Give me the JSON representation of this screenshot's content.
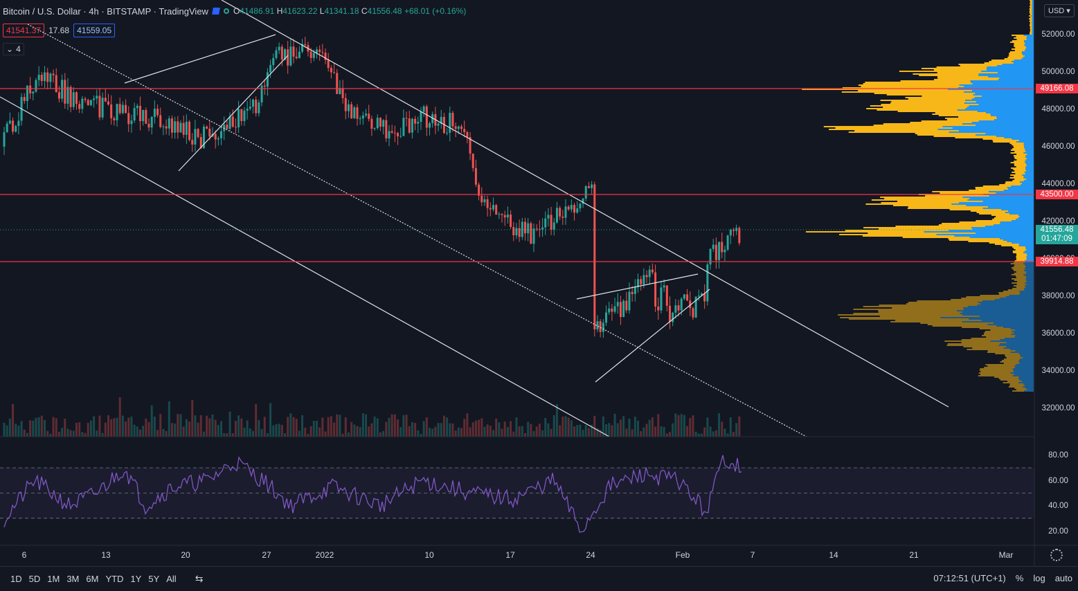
{
  "header": {
    "title": "Bitcoin / U.S. Dollar · 4h · BITSTAMP · TradingView",
    "ohlc": {
      "o_label": "O",
      "o": "41486.91",
      "h_label": "H",
      "h": "41623.22",
      "l_label": "L",
      "l": "41341.18",
      "c_label": "C",
      "c": "41556.48",
      "change": "+68.01 (+0.16%)"
    },
    "sell_price": "41541.37",
    "spread": "17.68",
    "buy_price": "41559.05",
    "indicator_count": "4",
    "currency": "USD"
  },
  "price_axis": [
    "52000.00",
    "50000.00",
    "48000.00",
    "46000.00",
    "44000.00",
    "42000.00",
    "40000.00",
    "38000.00",
    "36000.00",
    "34000.00",
    "32000.00"
  ],
  "rsi_axis": [
    "80.00",
    "60.00",
    "40.00",
    "20.00"
  ],
  "price_tags": {
    "level1": "49166.08",
    "level2": "43500.00",
    "level3": "39914.88",
    "current": "41556.48",
    "countdown": "01:47:09"
  },
  "time_axis": [
    "6",
    "13",
    "20",
    "27",
    "2022",
    "10",
    "17",
    "24",
    "Feb",
    "7",
    "14",
    "21",
    "Mar"
  ],
  "bottom_bar": {
    "ranges": [
      "1D",
      "5D",
      "1M",
      "3M",
      "6M",
      "YTD",
      "1Y",
      "5Y",
      "All"
    ],
    "clock": "07:12:51 (UTC+1)",
    "percent": "%",
    "log": "log",
    "auto": "auto"
  },
  "colors": {
    "bg": "#131722",
    "up": "#26a69a",
    "down": "#ef5350",
    "level": "#f23645",
    "rsi": "#7e57c2",
    "vp_up": "#f7b718",
    "vp_down": "#2196f3"
  },
  "chart_data": {
    "type": "candlestick",
    "symbol": "BTCUSD",
    "interval": "4h",
    "price_range": [
      31000,
      53500
    ],
    "horizontal_levels": [
      49166.08,
      43500,
      39914.88
    ],
    "approx_close_path": [
      {
        "t": "Jan 4",
        "close": 46500
      },
      {
        "t": "Jan 6",
        "close": 49800
      },
      {
        "t": "Jan 9",
        "close": 49000
      },
      {
        "t": "Jan 12",
        "close": 47900
      },
      {
        "t": "Jan 15",
        "close": 48300
      },
      {
        "t": "Jan 18",
        "close": 47000
      },
      {
        "t": "Jan 21",
        "close": 46200
      },
      {
        "t": "Jan 23",
        "close": 47800
      },
      {
        "t": "Jan 25",
        "close": 50900
      },
      {
        "t": "Jan 27",
        "close": 51500
      },
      {
        "t": "Jan 29",
        "close": 48500
      },
      {
        "t": "Jan 31",
        "close": 47000
      },
      {
        "t": "Jan 2",
        "close": 47700
      },
      {
        "t": "Jan 4",
        "close": 46500
      },
      {
        "t": "Jan 6",
        "close": 47000
      },
      {
        "t": "Jan 7",
        "close": 43300
      },
      {
        "t": "Jan 9",
        "close": 41700
      },
      {
        "t": "Jan 11",
        "close": 42000
      },
      {
        "t": "Jan 13",
        "close": 43900
      },
      {
        "t": "Jan 15",
        "close": 43100
      },
      {
        "t": "Jan 17",
        "close": 43000
      },
      {
        "t": "Jan 19",
        "close": 42100
      },
      {
        "t": "Jan 20",
        "close": 43000
      },
      {
        "t": "Jan 21",
        "close": 38900
      },
      {
        "t": "Jan 22",
        "close": 35800
      },
      {
        "t": "Jan 23",
        "close": 35200
      },
      {
        "t": "Jan 24",
        "close": 34500
      },
      {
        "t": "Jan 25",
        "close": 36600
      },
      {
        "t": "Jan 27",
        "close": 36500
      },
      {
        "t": "Jan 29",
        "close": 37900
      },
      {
        "t": "Jan 31",
        "close": 38300
      },
      {
        "t": "Feb 2",
        "close": 36900
      },
      {
        "t": "Feb 3",
        "close": 37800
      },
      {
        "t": "Feb 4",
        "close": 41600
      },
      {
        "t": "Feb 5",
        "close": 41556.48
      }
    ],
    "rsi": {
      "upper": 70,
      "lower": 30,
      "mid": 50,
      "last": 72
    }
  }
}
